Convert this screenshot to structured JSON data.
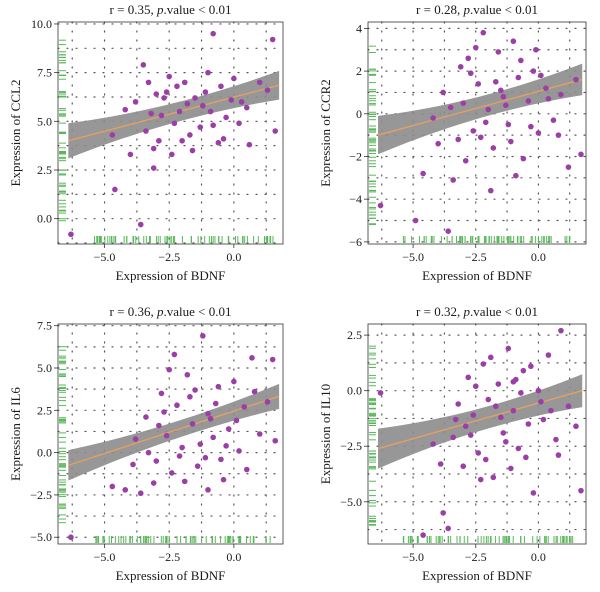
{
  "colors": {
    "points": "#9b3fa6",
    "band": "#8c8c8c",
    "fit": "#e8a060",
    "rug": "#57b957",
    "grid": "#555555",
    "axis": "#333333"
  },
  "chart_data": [
    {
      "type": "scatter",
      "title": "r = 0.35, p.value < 0.01",
      "title_parts": {
        "before": "r = 0.35, ",
        "italic": "p",
        "after": ".value < 0.01"
      },
      "xlabel": "Expression of BDNF",
      "ylabel": "Expression of CCL2",
      "xlim": [
        -6.8,
        1.9
      ],
      "ylim": [
        -1.3,
        10.1
      ],
      "xticks": [
        -5.0,
        -2.5,
        0.0
      ],
      "xtick_labels": [
        "−5.0",
        "−2.5",
        "0.0"
      ],
      "yticks": [
        0.0,
        2.5,
        5.0,
        7.5,
        10.0
      ],
      "ytick_labels": [
        "0.0",
        "2.5",
        "5.0",
        "7.5",
        "10.0"
      ],
      "grid": true,
      "fit": {
        "slope": 0.35,
        "intercept": 6.24,
        "band_low": 0.9,
        "band_high": 0.5
      },
      "points": [
        [
          -6.3,
          -0.8
        ],
        [
          -3.6,
          -0.3
        ],
        [
          -4.6,
          1.5
        ],
        [
          -3.1,
          2.6
        ],
        [
          -4.7,
          4.3
        ],
        [
          -4.0,
          3.3
        ],
        [
          -4.2,
          5.6
        ],
        [
          -3.8,
          6.0
        ],
        [
          -3.2,
          5.4
        ],
        [
          -3.4,
          4.5
        ],
        [
          -3.0,
          6.4
        ],
        [
          -2.9,
          4.0
        ],
        [
          -2.6,
          6.5
        ],
        [
          -2.3,
          4.9
        ],
        [
          -2.1,
          5.5
        ],
        [
          -1.9,
          7.0
        ],
        [
          -1.7,
          4.3
        ],
        [
          -1.5,
          6.2
        ],
        [
          -1.2,
          5.8
        ],
        [
          -1.0,
          7.5
        ],
        [
          -0.8,
          4.8
        ],
        [
          -0.5,
          6.8
        ],
        [
          -0.3,
          5.2
        ],
        [
          0.0,
          7.2
        ],
        [
          0.3,
          6.0
        ],
        [
          0.6,
          3.8
        ],
        [
          1.0,
          7.0
        ],
        [
          1.3,
          6.6
        ],
        [
          1.5,
          9.2
        ],
        [
          1.6,
          4.5
        ],
        [
          -0.8,
          9.5
        ],
        [
          -3.5,
          7.9
        ],
        [
          -2.7,
          6.2
        ],
        [
          -2.0,
          4.0
        ],
        [
          -1.6,
          3.5
        ],
        [
          -1.3,
          4.7
        ],
        [
          -0.9,
          5.5
        ],
        [
          -0.4,
          4.1
        ],
        [
          0.2,
          4.9
        ],
        [
          -0.1,
          6.1
        ],
        [
          -2.5,
          7.3
        ],
        [
          -3.1,
          3.6
        ],
        [
          -2.8,
          5.3
        ],
        [
          -1.8,
          5.9
        ],
        [
          -2.2,
          6.8
        ],
        [
          -1.1,
          6.5
        ],
        [
          -0.6,
          3.9
        ],
        [
          0.5,
          5.7
        ],
        [
          -3.3,
          7.0
        ],
        [
          -2.4,
          3.3
        ]
      ]
    },
    {
      "type": "scatter",
      "title": "r = 0.28, p.value < 0.01",
      "title_parts": {
        "before": "r = 0.28, ",
        "italic": "p",
        "after": ".value < 0.01"
      },
      "xlabel": "Expression of BDNF",
      "ylabel": "Expression of CCR2",
      "xlim": [
        -6.8,
        1.9
      ],
      "ylim": [
        -6.1,
        4.3
      ],
      "xticks": [
        -5.0,
        -2.5,
        0.0
      ],
      "xtick_labels": [
        "−5.0",
        "−2.5",
        "0.0"
      ],
      "yticks": [
        -6,
        -4,
        -2,
        0,
        2,
        4
      ],
      "ytick_labels": [
        "−6",
        "−4",
        "−2",
        "0",
        "2",
        "4"
      ],
      "grid": true,
      "fit": {
        "slope": 0.32,
        "intercept": 1.05,
        "band_low": 0.9,
        "band_high": 0.5
      },
      "points": [
        [
          -6.3,
          -4.3
        ],
        [
          -4.9,
          -5.0
        ],
        [
          -4.6,
          -2.8
        ],
        [
          -3.6,
          -5.5
        ],
        [
          -3.4,
          -3.1
        ],
        [
          -4.2,
          -0.2
        ],
        [
          -3.8,
          1.0
        ],
        [
          -3.2,
          -1.2
        ],
        [
          -3.0,
          0.5
        ],
        [
          -2.8,
          2.6
        ],
        [
          -2.6,
          -0.8
        ],
        [
          -2.4,
          1.4
        ],
        [
          -2.2,
          3.8
        ],
        [
          -2.0,
          0.2
        ],
        [
          -1.8,
          -1.6
        ],
        [
          -1.6,
          2.9
        ],
        [
          -1.4,
          0.8
        ],
        [
          -1.2,
          -0.5
        ],
        [
          -1.0,
          3.4
        ],
        [
          -0.8,
          1.7
        ],
        [
          -0.6,
          -2.1
        ],
        [
          -0.4,
          0.6
        ],
        [
          -0.2,
          2.0
        ],
        [
          0.0,
          -0.9
        ],
        [
          0.3,
          1.2
        ],
        [
          0.6,
          -0.3
        ],
        [
          0.9,
          0.9
        ],
        [
          1.2,
          -2.5
        ],
        [
          1.5,
          1.6
        ],
        [
          1.7,
          -1.9
        ],
        [
          -2.9,
          -2.2
        ],
        [
          -2.5,
          3.1
        ],
        [
          -1.9,
          -3.6
        ],
        [
          -1.5,
          1.1
        ],
        [
          -1.1,
          -1.3
        ],
        [
          -0.7,
          2.5
        ],
        [
          -0.3,
          -0.6
        ],
        [
          0.1,
          1.8
        ],
        [
          -3.5,
          0.3
        ],
        [
          -2.7,
          1.9
        ],
        [
          -2.1,
          -0.4
        ],
        [
          -1.3,
          0.4
        ],
        [
          -0.9,
          -2.9
        ],
        [
          0.4,
          0.7
        ],
        [
          -0.1,
          3.0
        ],
        [
          -4.0,
          -1.4
        ],
        [
          -3.1,
          2.2
        ],
        [
          -2.3,
          -1.1
        ],
        [
          -1.7,
          1.5
        ],
        [
          0.8,
          -1.0
        ]
      ]
    },
    {
      "type": "scatter",
      "title": "r = 0.36, p.value < 0.01",
      "title_parts": {
        "before": "r = 0.36, ",
        "italic": "p",
        "after": ".value < 0.01"
      },
      "xlabel": "Expression of BDNF",
      "ylabel": "Expression of IL6",
      "xlim": [
        -6.8,
        1.9
      ],
      "ylim": [
        -5.4,
        7.6
      ],
      "xticks": [
        -5.0,
        -2.5,
        0.0
      ],
      "xtick_labels": [
        "−5.0",
        "−2.5",
        "0.0"
      ],
      "yticks": [
        -5.0,
        -2.5,
        0.0,
        2.5,
        5.0,
        7.5
      ],
      "ytick_labels": [
        "−5.0",
        "−2.5",
        "0.0",
        "2.5",
        "5.0",
        "7.5"
      ],
      "grid": true,
      "fit": {
        "slope": 0.5,
        "intercept": 2.45,
        "band_low": 0.9,
        "band_high": 0.5
      },
      "points": [
        [
          -6.3,
          -5.0
        ],
        [
          -4.7,
          -2.0
        ],
        [
          -4.2,
          -2.2
        ],
        [
          -3.6,
          -2.4
        ],
        [
          -3.1,
          -1.8
        ],
        [
          -3.8,
          0.8
        ],
        [
          -3.4,
          2.1
        ],
        [
          -3.0,
          -0.5
        ],
        [
          -2.8,
          3.5
        ],
        [
          -2.6,
          1.0
        ],
        [
          -2.4,
          -1.2
        ],
        [
          -2.2,
          2.8
        ],
        [
          -2.0,
          0.3
        ],
        [
          -1.8,
          4.6
        ],
        [
          -1.6,
          1.7
        ],
        [
          -1.4,
          -0.8
        ],
        [
          -1.2,
          6.9
        ],
        [
          -1.0,
          2.3
        ],
        [
          -0.8,
          0.9
        ],
        [
          -0.6,
          3.9
        ],
        [
          -0.4,
          -1.6
        ],
        [
          -0.2,
          1.4
        ],
        [
          0.0,
          4.2
        ],
        [
          0.2,
          0.1
        ],
        [
          0.4,
          2.7
        ],
        [
          0.7,
          5.6
        ],
        [
          1.0,
          1.1
        ],
        [
          1.3,
          3.0
        ],
        [
          1.5,
          5.5
        ],
        [
          1.6,
          0.7
        ],
        [
          -2.9,
          1.6
        ],
        [
          -2.5,
          4.9
        ],
        [
          -2.1,
          -0.2
        ],
        [
          -1.7,
          3.3
        ],
        [
          -1.3,
          0.5
        ],
        [
          -0.9,
          2.0
        ],
        [
          -0.5,
          -0.4
        ],
        [
          0.1,
          1.9
        ],
        [
          -3.3,
          0.0
        ],
        [
          -2.7,
          2.4
        ],
        [
          -1.9,
          -1.7
        ],
        [
          -1.5,
          3.7
        ],
        [
          -1.1,
          -0.3
        ],
        [
          -0.7,
          2.9
        ],
        [
          -0.3,
          0.4
        ],
        [
          0.5,
          -1.0
        ],
        [
          -3.9,
          -0.7
        ],
        [
          -2.3,
          5.8
        ],
        [
          -1.0,
          -2.2
        ],
        [
          0.8,
          3.6
        ]
      ]
    },
    {
      "type": "scatter",
      "title": "r = 0.32, p.value < 0.01",
      "title_parts": {
        "before": "r = 0.32, ",
        "italic": "p",
        "after": ".value < 0.01"
      },
      "xlabel": "Expression of BDNF",
      "ylabel": "Expression of IL10",
      "xlim": [
        -6.8,
        1.9
      ],
      "ylim": [
        -6.9,
        3.0
      ],
      "xticks": [
        -5.0,
        -2.5,
        0.0
      ],
      "xtick_labels": [
        "−5.0",
        "−2.5",
        "0.0"
      ],
      "yticks": [
        -5.0,
        -2.5,
        0.0,
        2.5
      ],
      "ytick_labels": [
        "−5.0",
        "−2.5",
        "0.0",
        "2.5"
      ],
      "grid": true,
      "fit": {
        "slope": 0.32,
        "intercept": -0.56,
        "band_low": 0.9,
        "band_high": 0.5
      },
      "points": [
        [
          -6.3,
          -0.1
        ],
        [
          -4.6,
          -6.5
        ],
        [
          -3.8,
          -5.5
        ],
        [
          -3.6,
          -6.2
        ],
        [
          -4.2,
          -2.4
        ],
        [
          -3.4,
          -2.1
        ],
        [
          -3.2,
          -0.6
        ],
        [
          -3.0,
          -3.4
        ],
        [
          -2.8,
          0.6
        ],
        [
          -2.6,
          -1.1
        ],
        [
          -2.4,
          -2.8
        ],
        [
          -2.2,
          1.2
        ],
        [
          -2.0,
          -0.4
        ],
        [
          -1.8,
          -3.9
        ],
        [
          -1.6,
          0.3
        ],
        [
          -1.4,
          -1.9
        ],
        [
          -1.2,
          1.9
        ],
        [
          -1.0,
          -0.9
        ],
        [
          -0.8,
          -2.6
        ],
        [
          -0.6,
          0.9
        ],
        [
          -0.4,
          -1.5
        ],
        [
          -0.2,
          -4.6
        ],
        [
          0.0,
          0.0
        ],
        [
          0.2,
          -1.3
        ],
        [
          0.4,
          1.6
        ],
        [
          0.7,
          -2.2
        ],
        [
          0.9,
          2.7
        ],
        [
          1.2,
          -0.7
        ],
        [
          1.5,
          -1.6
        ],
        [
          1.7,
          -4.5
        ],
        [
          -2.9,
          -1.6
        ],
        [
          -2.5,
          0.2
        ],
        [
          -2.1,
          -3.1
        ],
        [
          -1.7,
          -0.7
        ],
        [
          -1.3,
          -2.3
        ],
        [
          -0.9,
          0.5
        ],
        [
          -0.5,
          -3.0
        ],
        [
          0.1,
          -0.5
        ],
        [
          -3.3,
          -1.3
        ],
        [
          -2.7,
          -2.0
        ],
        [
          -1.9,
          1.5
        ],
        [
          -1.5,
          -1.2
        ],
        [
          -1.1,
          -3.5
        ],
        [
          -0.7,
          -0.1
        ],
        [
          -0.3,
          1.1
        ],
        [
          0.5,
          -0.9
        ],
        [
          -3.9,
          -3.3
        ],
        [
          -2.3,
          -4.0
        ],
        [
          -1.0,
          0.4
        ],
        [
          0.8,
          -2.9
        ]
      ]
    }
  ]
}
